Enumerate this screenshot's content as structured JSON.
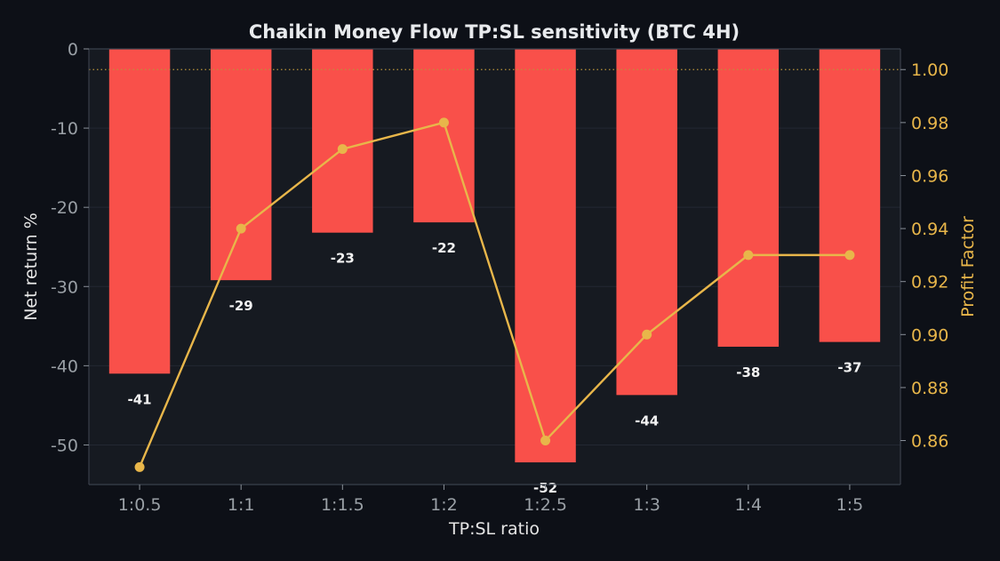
{
  "chart_data": {
    "type": "bar",
    "title": "Chaikin Money Flow TP:SL sensitivity (BTC 4H)",
    "xlabel": "TP:SL ratio",
    "ylabel": "Net return %",
    "y2label": "Profit Factor",
    "categories": [
      "1:0.5",
      "1:1",
      "1:1.5",
      "1:2",
      "1:2.5",
      "1:3",
      "1:4",
      "1:5"
    ],
    "series": [
      {
        "type": "bar",
        "axis": "left",
        "values": [
          -41.0,
          -29.2,
          -23.2,
          -21.9,
          -52.2,
          -43.7,
          -37.6,
          -37.0
        ],
        "labels": [
          "-41",
          "-29",
          "-23",
          "-22",
          "-52",
          "-44",
          "-38",
          "-37"
        ],
        "color": "#f9504a"
      },
      {
        "type": "line",
        "axis": "right",
        "values": [
          0.85,
          0.94,
          0.97,
          0.98,
          0.86,
          0.9,
          0.93,
          0.93
        ],
        "color": "#e8b64a"
      }
    ],
    "ylim": [
      -55,
      0
    ],
    "yticks": [
      0,
      -10,
      -20,
      -30,
      -40,
      -50
    ],
    "y2lim": [
      0.8434,
      1.0078
    ],
    "y2ticks": [
      "0.86",
      "0.88",
      "0.90",
      "0.92",
      "0.94",
      "0.96",
      "0.98",
      "1.00"
    ],
    "reference_line": {
      "axis": "right",
      "value": 1.0,
      "style": "dotted"
    },
    "grid": true,
    "legend": "none"
  },
  "colors": {
    "background": "#0d1017",
    "plot_background": "#161a21",
    "bar": "#f9504a",
    "line": "#e8b64a",
    "text": "#e6e6e6",
    "tick": "#9aa0a6"
  }
}
